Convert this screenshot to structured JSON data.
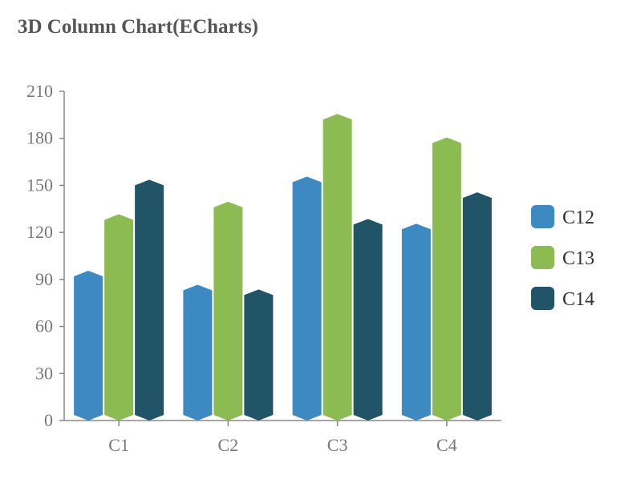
{
  "chart_data": {
    "type": "bar",
    "title": "3D Column Chart(ECharts)",
    "xlabel": "",
    "ylabel": "",
    "categories": [
      "C1",
      "C2",
      "C3",
      "C4"
    ],
    "series": [
      {
        "name": "C12",
        "color": "#3d8ac3",
        "values": [
          92,
          83,
          152,
          122
        ]
      },
      {
        "name": "C13",
        "color": "#8cbb52",
        "values": [
          128,
          136,
          192,
          177
        ]
      },
      {
        "name": "C14",
        "color": "#225467",
        "values": [
          150,
          80,
          125,
          142
        ]
      }
    ],
    "ylim": [
      0,
      210
    ],
    "yticks": [
      "0",
      "30",
      "60",
      "90",
      "120",
      "150",
      "180",
      "210"
    ],
    "grid": false,
    "legend_position": "right"
  }
}
